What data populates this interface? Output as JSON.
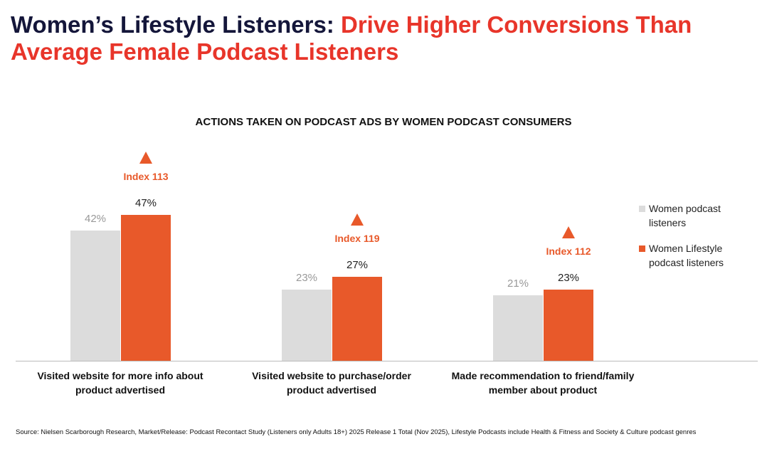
{
  "title": "Women’s Lifestyle Listeners:",
  "title_highlight": "Drive Higher Conversions Than Average Female Podcast Listeners",
  "chart_data": {
    "type": "bar",
    "title": "ACTIONS TAKEN ON PODCAST ADS BY WOMEN PODCAST CONSUMERS",
    "categories": [
      "Visited website for more info about product advertised",
      "Visited website to purchase/order product advertised",
      "Made recommendation to friend/family member about product"
    ],
    "series": [
      {
        "name": "Women podcast listeners",
        "color": "#dcdcdc",
        "values": [
          42,
          23,
          21
        ],
        "value_labels": [
          "42%",
          "23%",
          "21%"
        ]
      },
      {
        "name": "Women Lifestyle podcast listeners",
        "color": "#e8592a",
        "values": [
          47,
          27,
          23
        ],
        "value_labels": [
          "47%",
          "27%",
          "23%"
        ]
      }
    ],
    "annotations": [
      "Index 113",
      "Index 119",
      "Index 112"
    ],
    "legend": "right"
  },
  "source": "Source: Nielsen Scarborough Research, Market/Release: Podcast Recontact Study (Listeners only Adults 18+) 2025 Release 1 Total (Nov 2025), Lifestyle Podcasts include Health & Fitness and Society & Culture podcast genres"
}
